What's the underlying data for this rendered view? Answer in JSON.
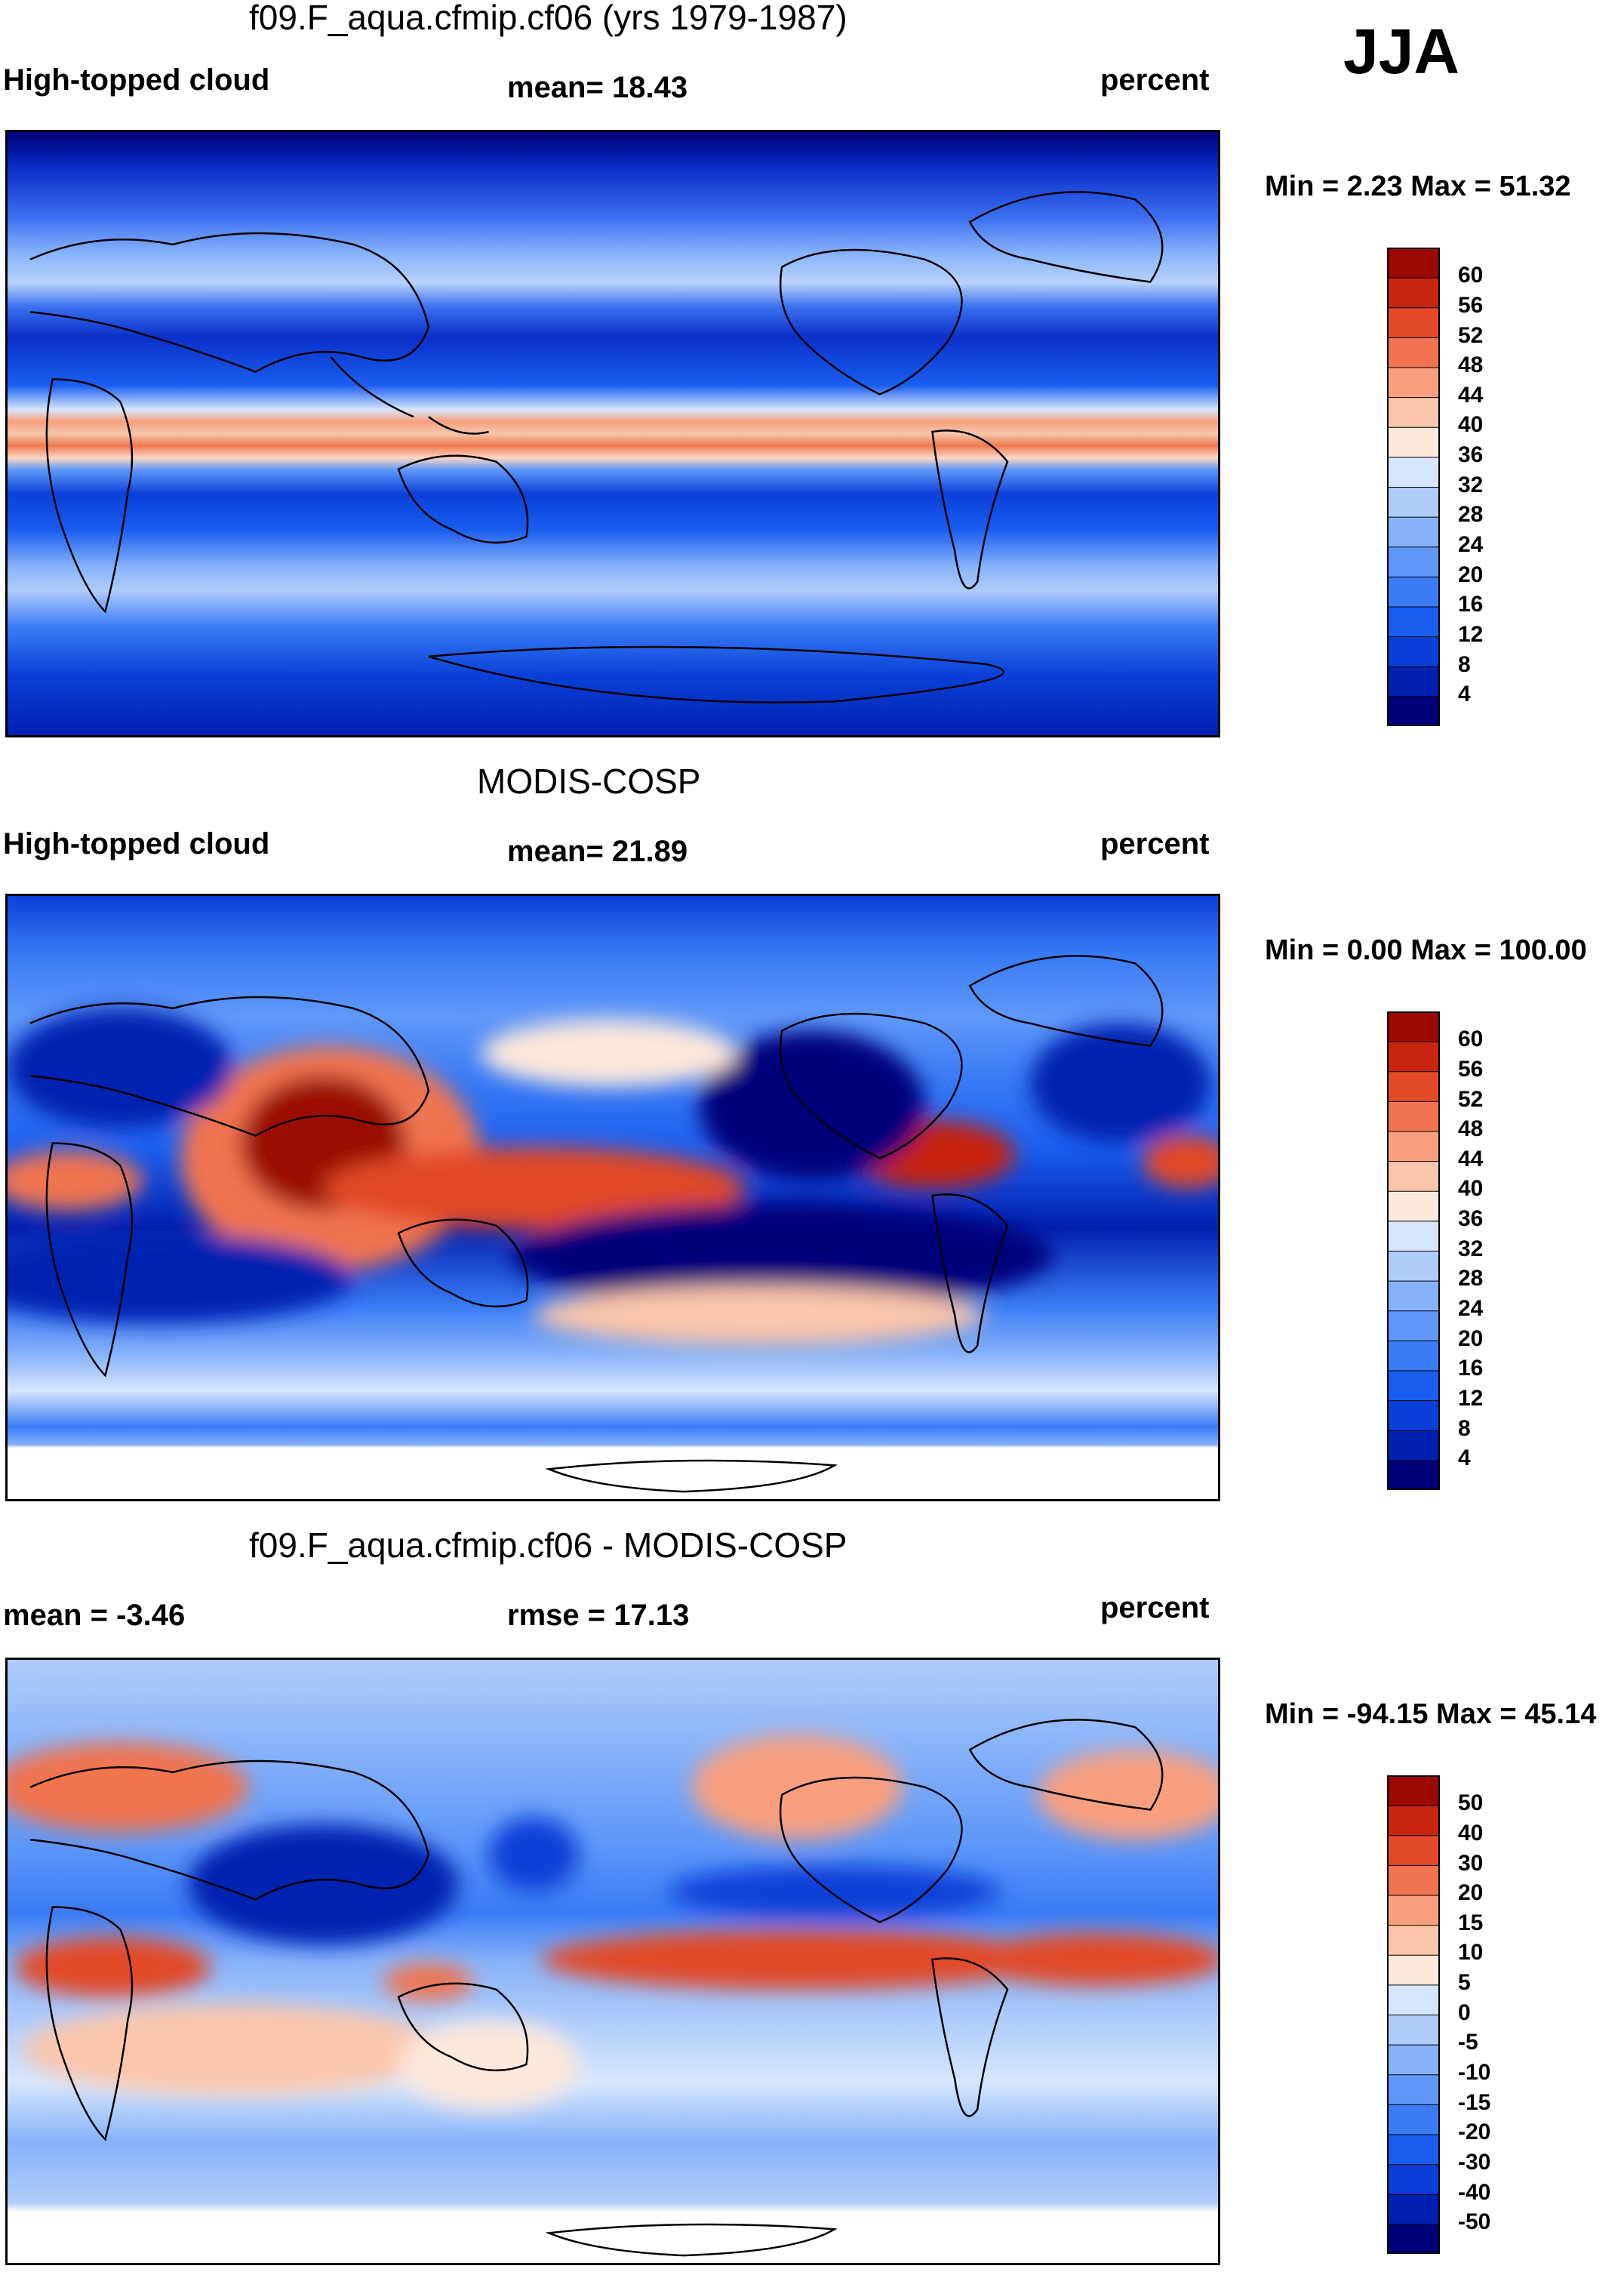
{
  "season": "JJA",
  "panels": [
    {
      "id": "model",
      "title": "f09.F_aqua.cfmip.cf06 (yrs 1979-1987)",
      "left_label": "High-topped cloud",
      "center_label": "mean=  18.43",
      "right_label": "percent",
      "minmax": "Min =    2.23 Max =  51.32"
    },
    {
      "id": "obs",
      "title": "MODIS-COSP",
      "left_label": "High-topped cloud",
      "center_label": "mean=  21.89",
      "right_label": "percent",
      "minmax": "Min =    0.00 Max = 100.00"
    },
    {
      "id": "diff",
      "title": "f09.F_aqua.cfmip.cf06 - MODIS-COSP",
      "left_label": "mean =  -3.46",
      "center_label": "rmse =  17.13",
      "right_label": "percent",
      "minmax": "Min = -94.15 Max =  45.14"
    }
  ],
  "chart_data": [
    {
      "type": "heatmap",
      "title": "f09.F_aqua.cfmip.cf06 (yrs 1979-1987)",
      "variable": "High-topped cloud",
      "units": "percent",
      "mean": 18.43,
      "min": 2.23,
      "max": 51.32,
      "colorbar_levels": [
        4,
        8,
        12,
        16,
        20,
        24,
        28,
        32,
        36,
        40,
        44,
        48,
        52,
        56,
        60
      ],
      "colorbar_colors": [
        "#00007a",
        "#0020b0",
        "#0a40d8",
        "#1a5ef0",
        "#3a7cf6",
        "#5f98f8",
        "#86b2fa",
        "#b0ccfb",
        "#d8e6fc",
        "#fde8dc",
        "#fbc6ab",
        "#f89f7e",
        "#f0744f",
        "#e34a28",
        "#c82410",
        "#9a0a00"
      ]
    },
    {
      "type": "heatmap",
      "title": "MODIS-COSP",
      "variable": "High-topped cloud",
      "units": "percent",
      "mean": 21.89,
      "min": 0.0,
      "max": 100.0,
      "colorbar_levels": [
        4,
        8,
        12,
        16,
        20,
        24,
        28,
        32,
        36,
        40,
        44,
        48,
        52,
        56,
        60
      ],
      "colorbar_colors": [
        "#00007a",
        "#0020b0",
        "#0a40d8",
        "#1a5ef0",
        "#3a7cf6",
        "#5f98f8",
        "#86b2fa",
        "#b0ccfb",
        "#d8e6fc",
        "#fde8dc",
        "#fbc6ab",
        "#f89f7e",
        "#f0744f",
        "#e34a28",
        "#c82410",
        "#9a0a00"
      ]
    },
    {
      "type": "heatmap",
      "title": "f09.F_aqua.cfmip.cf06 - MODIS-COSP",
      "units": "percent",
      "mean": -3.46,
      "rmse": 17.13,
      "min": -94.15,
      "max": 45.14,
      "colorbar_levels": [
        -50,
        -40,
        -30,
        -20,
        -15,
        -10,
        -5,
        0,
        5,
        10,
        15,
        20,
        30,
        40,
        50
      ],
      "colorbar_colors": [
        "#00007a",
        "#0020b0",
        "#0a40d8",
        "#1a5ef0",
        "#3a7cf6",
        "#5f98f8",
        "#86b2fa",
        "#b0ccfb",
        "#d8e6fc",
        "#fde8dc",
        "#fbc6ab",
        "#f89f7e",
        "#f0744f",
        "#e34a28",
        "#c82410",
        "#9a0a00"
      ]
    }
  ]
}
